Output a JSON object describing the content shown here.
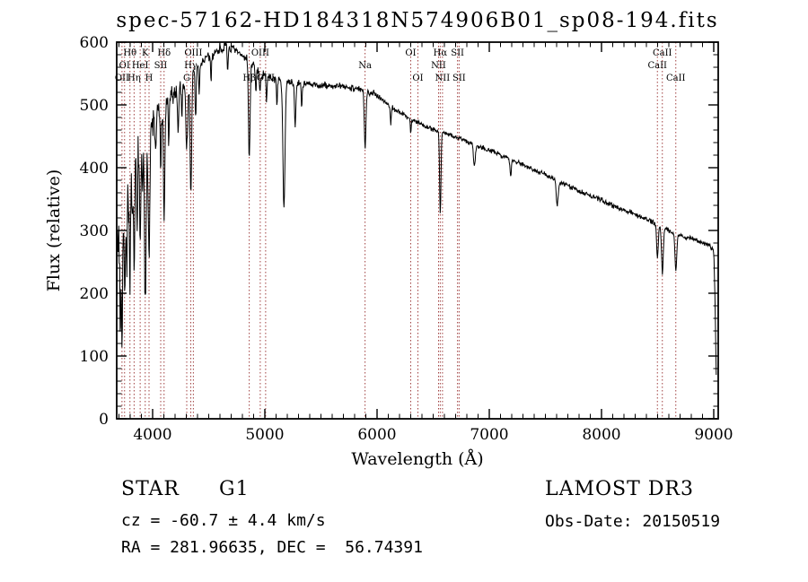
{
  "title": "spec-57162-HD184318N574906B01_sp08-194.fits",
  "footer": {
    "object_class": "STAR",
    "subclass": "G1",
    "survey": "LAMOST DR3",
    "cz_line": "cz = -60.7 ± 4.4 km/s",
    "obs_date_line": "Obs-Date: 20150519",
    "radec_line": "RA = 281.96635, DEC =  56.74391"
  },
  "colors": {
    "axis": "#000000",
    "spectrum": "#000000",
    "marker_line": "#a04040",
    "marker_text": "#702820",
    "background": "#ffffff"
  },
  "chart_data": {
    "type": "line",
    "title": "spec-57162-HD184318N574906B01_sp08-194.fits",
    "xlabel": "Wavelength (Å)",
    "ylabel": "Flux (relative)",
    "xlim": [
      3680,
      9040
    ],
    "ylim": [
      0,
      600
    ],
    "x_major_ticks": [
      4000,
      5000,
      6000,
      7000,
      8000,
      9000
    ],
    "x_minor_step": 100,
    "y_major_ticks": [
      0,
      100,
      200,
      300,
      400,
      500,
      600
    ],
    "y_minor_step": 20,
    "grid": false,
    "legend": "none",
    "series_name": "spectrum",
    "sample_step": 4,
    "noise": {
      "seed": 7,
      "amplitudes": [
        [
          3800,
          58
        ],
        [
          3950,
          45
        ],
        [
          4150,
          30
        ],
        [
          4400,
          18
        ],
        [
          4700,
          11
        ],
        [
          5000,
          9
        ],
        [
          6000,
          7
        ],
        [
          7500,
          5
        ],
        [
          9999,
          5
        ]
      ]
    },
    "continuum": [
      [
        3682,
        250
      ],
      [
        3700,
        300
      ],
      [
        3720,
        330
      ],
      [
        3740,
        340
      ],
      [
        3760,
        345
      ],
      [
        3780,
        370
      ],
      [
        3800,
        385
      ],
      [
        3820,
        395
      ],
      [
        3840,
        405
      ],
      [
        3860,
        415
      ],
      [
        3880,
        428
      ],
      [
        3900,
        438
      ],
      [
        3920,
        445
      ],
      [
        3940,
        450
      ],
      [
        3960,
        458
      ],
      [
        3980,
        465
      ],
      [
        4000,
        470
      ],
      [
        4030,
        480
      ],
      [
        4060,
        490
      ],
      [
        4100,
        500
      ],
      [
        4150,
        510
      ],
      [
        4200,
        520
      ],
      [
        4250,
        530
      ],
      [
        4300,
        542
      ],
      [
        4350,
        552
      ],
      [
        4400,
        562
      ],
      [
        4450,
        570
      ],
      [
        4500,
        576
      ],
      [
        4550,
        582
      ],
      [
        4600,
        590
      ],
      [
        4650,
        592
      ],
      [
        4700,
        590
      ],
      [
        4750,
        584
      ],
      [
        4800,
        578
      ],
      [
        4861,
        572
      ],
      [
        4900,
        562
      ],
      [
        4950,
        550
      ],
      [
        5000,
        545
      ],
      [
        5050,
        543
      ],
      [
        5100,
        541
      ],
      [
        5150,
        538
      ],
      [
        5200,
        535
      ],
      [
        5300,
        535
      ],
      [
        5400,
        532
      ],
      [
        5500,
        531
      ],
      [
        5600,
        530
      ],
      [
        5700,
        529
      ],
      [
        5800,
        527
      ],
      [
        5900,
        522
      ],
      [
        5950,
        520
      ],
      [
        6000,
        516
      ],
      [
        6050,
        508
      ],
      [
        6100,
        500
      ],
      [
        6150,
        494
      ],
      [
        6200,
        488
      ],
      [
        6300,
        478
      ],
      [
        6400,
        469
      ],
      [
        6500,
        461
      ],
      [
        6600,
        455
      ],
      [
        6700,
        449
      ],
      [
        6800,
        442
      ],
      [
        6900,
        435
      ],
      [
        7000,
        428
      ],
      [
        7100,
        420
      ],
      [
        7200,
        413
      ],
      [
        7300,
        405
      ],
      [
        7400,
        397
      ],
      [
        7500,
        389
      ],
      [
        7600,
        380
      ],
      [
        7700,
        371
      ],
      [
        7800,
        363
      ],
      [
        7900,
        355
      ],
      [
        8000,
        348
      ],
      [
        8100,
        340
      ],
      [
        8200,
        333
      ],
      [
        8300,
        326
      ],
      [
        8400,
        318
      ],
      [
        8500,
        310
      ],
      [
        8600,
        300
      ],
      [
        8700,
        292
      ],
      [
        8800,
        287
      ],
      [
        8900,
        281
      ],
      [
        8960,
        276
      ],
      [
        9000,
        268
      ],
      [
        9012,
        180
      ],
      [
        9022,
        70
      ]
    ],
    "absorption_lines": [
      [
        3712,
        160,
        5
      ],
      [
        3727,
        180,
        6
      ],
      [
        3750,
        170,
        5
      ],
      [
        3770,
        120,
        4
      ],
      [
        3798,
        150,
        6
      ],
      [
        3820,
        100,
        4
      ],
      [
        3835,
        160,
        6
      ],
      [
        3860,
        110,
        4
      ],
      [
        3889,
        170,
        6
      ],
      [
        3912,
        90,
        4
      ],
      [
        3934,
        280,
        7
      ],
      [
        3968,
        200,
        7
      ],
      [
        4026,
        60,
        5
      ],
      [
        4072,
        90,
        5
      ],
      [
        4102,
        180,
        7
      ],
      [
        4144,
        60,
        5
      ],
      [
        4227,
        70,
        5
      ],
      [
        4260,
        50,
        4
      ],
      [
        4304,
        110,
        9
      ],
      [
        4340,
        200,
        7
      ],
      [
        4383,
        80,
        5
      ],
      [
        4415,
        50,
        4
      ],
      [
        4520,
        40,
        4
      ],
      [
        4668,
        40,
        4
      ],
      [
        4861,
        160,
        7
      ],
      [
        4920,
        40,
        4
      ],
      [
        4957,
        35,
        4
      ],
      [
        5015,
        35,
        4
      ],
      [
        5107,
        40,
        4
      ],
      [
        5170,
        200,
        9
      ],
      [
        5270,
        70,
        6
      ],
      [
        5328,
        40,
        4
      ],
      [
        5893,
        95,
        7
      ],
      [
        6122,
        30,
        4
      ],
      [
        6300,
        25,
        4
      ],
      [
        6563,
        130,
        6
      ],
      [
        6867,
        35,
        8
      ],
      [
        7190,
        25,
        6
      ],
      [
        7605,
        40,
        9
      ],
      [
        8498,
        55,
        7
      ],
      [
        8542,
        72,
        8
      ],
      [
        8662,
        58,
        8
      ]
    ],
    "line_markers": [
      {
        "label": "Hθ",
        "wavelength": 3798,
        "row": 1
      },
      {
        "label": "K",
        "wavelength": 3934,
        "row": 1
      },
      {
        "label": "Hδ",
        "wavelength": 4102,
        "row": 1
      },
      {
        "label": "OIII",
        "wavelength": 4363,
        "row": 1
      },
      {
        "label": "OIII",
        "wavelength": 4959,
        "row": 1
      },
      {
        "label": "OI",
        "wavelength": 6300,
        "row": 1
      },
      {
        "label": "Hα",
        "wavelength": 6563,
        "row": 1
      },
      {
        "label": "SII",
        "wavelength": 6717,
        "row": 1
      },
      {
        "label": "CaII",
        "wavelength": 8542,
        "row": 1
      },
      {
        "label": "OI",
        "wavelength": 3750,
        "row": 2
      },
      {
        "label": "HeI",
        "wavelength": 3889,
        "row": 2
      },
      {
        "label": "SII",
        "wavelength": 4072,
        "row": 2
      },
      {
        "label": "Hγ",
        "wavelength": 4340,
        "row": 2
      },
      {
        "label": "Na",
        "wavelength": 5893,
        "row": 2
      },
      {
        "label": "NII",
        "wavelength": 6548,
        "row": 2
      },
      {
        "label": "CaII",
        "wavelength": 8498,
        "row": 2
      },
      {
        "label": "OII",
        "wavelength": 3727,
        "row": 3
      },
      {
        "label": "Hη",
        "wavelength": 3835,
        "row": 3
      },
      {
        "label": "H",
        "wavelength": 3968,
        "row": 3
      },
      {
        "label": "G",
        "wavelength": 4304,
        "row": 3
      },
      {
        "label": "Hβ",
        "wavelength": 4861,
        "row": 3
      },
      {
        "label": "OIII",
        "wavelength": 5007,
        "row": 3
      },
      {
        "label": "OI",
        "wavelength": 6364,
        "row": 3
      },
      {
        "label": "NII",
        "wavelength": 6583,
        "row": 3
      },
      {
        "label": "SII",
        "wavelength": 6731,
        "row": 3
      },
      {
        "label": "CaII",
        "wavelength": 8662,
        "row": 3
      }
    ]
  }
}
